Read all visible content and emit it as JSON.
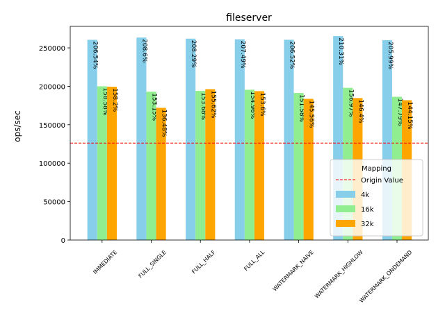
{
  "chart_data": {
    "type": "bar",
    "title": "fileserver",
    "xlabel": "",
    "ylabel": "ops/sec",
    "ylim": [
      0,
      278000
    ],
    "yticks": [
      0,
      50000,
      100000,
      150000,
      200000,
      250000
    ],
    "categories": [
      "IMMEDIATE",
      "FULL_SINGLE",
      "FULL_HALF",
      "FULL_ALL",
      "WATERMARK_NAIVE",
      "WATERMARK_HIGHLOW",
      "WATERMARK_ONDEMAND"
    ],
    "series": [
      {
        "name": "4k",
        "color": "#87ceeb",
        "values": [
          260500,
          263500,
          262000,
          261200,
          260600,
          265300,
          260000
        ],
        "labels": [
          "206.54%",
          "208.6%",
          "208.29%",
          "207.49%",
          "206.52%",
          "210.31%",
          "205.99%"
        ]
      },
      {
        "name": "16k",
        "color": "#90ee90",
        "values": [
          200000,
          193000,
          194000,
          195500,
          191300,
          198000,
          186400
        ],
        "labels": [
          "158.58%",
          "153.15%",
          "153.68%",
          "154.96%",
          "151.58%",
          "156.97%",
          "147.79%"
        ]
      },
      {
        "name": "32k",
        "color": "#ffa500",
        "values": [
          199500,
          172000,
          196300,
          193700,
          183700,
          184700,
          181900
        ],
        "labels": [
          "158.2%",
          "136.48%",
          "155.62%",
          "153.6%",
          "145.56%",
          "146.4%",
          "144.15%"
        ]
      }
    ],
    "reference_line": {
      "name": "Origin Value",
      "value": 126100,
      "color": "#ff0000",
      "style": "dashed"
    },
    "legend": {
      "title": "Mapping",
      "placement": "lower-right"
    },
    "grid": false
  }
}
